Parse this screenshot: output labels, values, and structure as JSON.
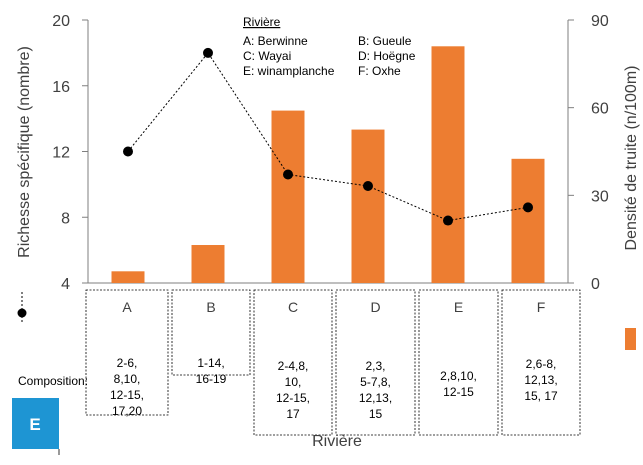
{
  "chart_data": {
    "type": "bar+line",
    "panel_label": "E",
    "categories": [
      "A",
      "B",
      "C",
      "D",
      "E",
      "F"
    ],
    "xlabel": "Rivière",
    "y_left": {
      "label": "Richesse spécifique (nombre)",
      "range": [
        4,
        20
      ],
      "ticks": [
        4,
        8,
        12,
        16,
        20
      ]
    },
    "y_right": {
      "label": "Densité de truite (n/100m)",
      "range": [
        0,
        90
      ],
      "ticks": [
        0,
        30,
        60,
        90
      ]
    },
    "series": [
      {
        "kind": "line",
        "axis": "left",
        "color": "#000000",
        "values": [
          12,
          18,
          10.6,
          9.9,
          7.8,
          8.6
        ]
      },
      {
        "kind": "bar",
        "axis": "right",
        "color": "#ED7D31",
        "values": [
          4,
          13,
          59,
          52.5,
          81,
          42.5
        ]
      }
    ],
    "legend": {
      "title": "Rivière",
      "entries": [
        "A: Berwinne",
        "B: Gueule",
        "C: Wayai",
        "D: Hoëgne",
        "E: winamplanche",
        "F: Oxhe"
      ]
    },
    "composition_label": "Composition:",
    "composition": [
      [
        "2-6,",
        "8,10,",
        "12-15,",
        "17,20"
      ],
      [
        "1-14,",
        "16-19"
      ],
      [
        "2-4,8,",
        "10,",
        "12-15,",
        "17"
      ],
      [
        "2,3,",
        "5-7,8,",
        "12,13,",
        "15"
      ],
      [
        "2,8,10,",
        "12-15"
      ],
      [
        "2,6-8,",
        "12,13,",
        "15, 17"
      ]
    ]
  }
}
